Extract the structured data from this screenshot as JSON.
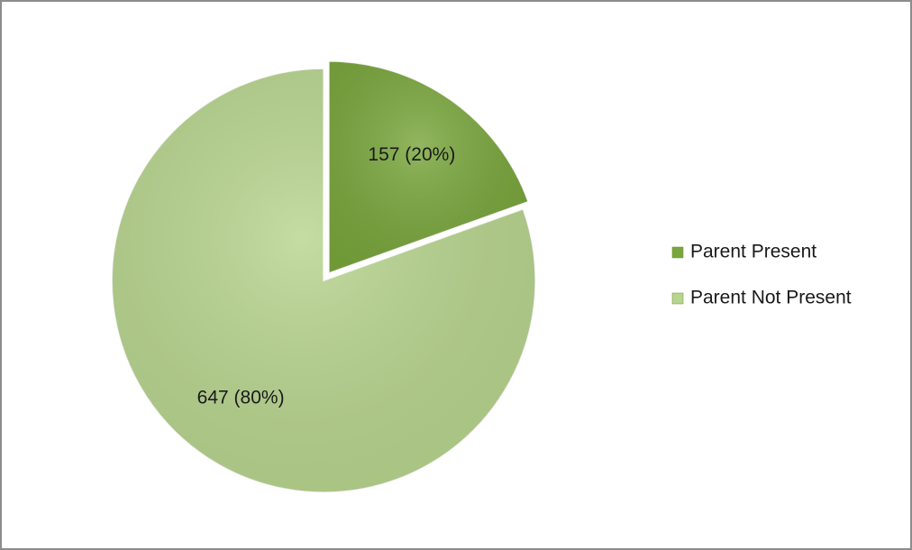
{
  "chart_data": {
    "type": "pie",
    "categories": [
      "Parent Present",
      "Parent Not Present"
    ],
    "values": [
      157,
      647
    ],
    "value_labels": [
      "157 (20%)",
      "647 (80%)"
    ],
    "colors": [
      "#79a63c",
      "#b8d58f"
    ],
    "legend": "right"
  }
}
